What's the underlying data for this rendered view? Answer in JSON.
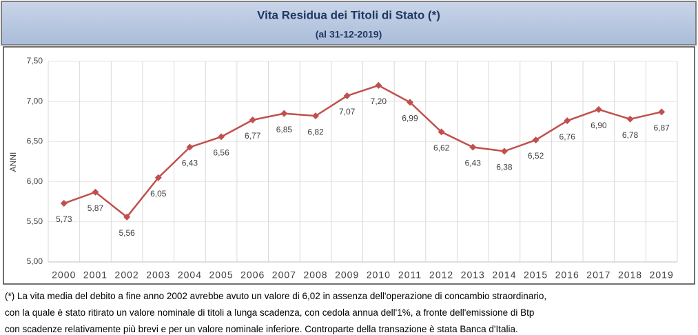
{
  "chart_data": {
    "type": "line",
    "title": "Vita Residua dei Titoli di Stato (*)",
    "subtitle": "(al  31-12-2019)",
    "ylabel": "ANNI",
    "categories": [
      "2000",
      "2001",
      "2002",
      "2003",
      "2004",
      "2005",
      "2006",
      "2007",
      "2008",
      "2009",
      "2010",
      "2011",
      "2012",
      "2013",
      "2014",
      "2015",
      "2016",
      "2017",
      "2018",
      "2019"
    ],
    "values": [
      5.73,
      5.87,
      5.56,
      6.05,
      6.43,
      6.56,
      6.77,
      6.85,
      6.82,
      7.07,
      7.2,
      6.99,
      6.62,
      6.43,
      6.38,
      6.52,
      6.76,
      6.9,
      6.78,
      6.87
    ],
    "value_labels": [
      "5,73",
      "5,87",
      "5,56",
      "6,05",
      "6,43",
      "6,56",
      "6,77",
      "6,85",
      "6,82",
      "7,07",
      "7,20",
      "6,99",
      "6,62",
      "6,43",
      "6,38",
      "6,52",
      "6,76",
      "6,90",
      "6,78",
      "6,87"
    ],
    "color": "#c0504d",
    "ylim": [
      5.0,
      7.5
    ],
    "yticks": [
      {
        "value": 5.0,
        "label": "5,00"
      },
      {
        "value": 5.5,
        "label": "5,50"
      },
      {
        "value": 6.0,
        "label": "6,00"
      },
      {
        "value": 6.5,
        "label": "6,50"
      },
      {
        "value": 7.0,
        "label": "7,00"
      },
      {
        "value": 7.5,
        "label": "7,50"
      }
    ],
    "grid": true,
    "footnote": [
      "(*) La vita media del debito a fine anno 2002 avrebbe avuto un valore di 6,02 in assenza dell'operazione di concambio straordinario,",
      " con la quale è stato ritirato un valore nominale di titoli a lunga scadenza, con cedola annua dell'1%, a fronte dell'emissione di Btp",
      "con scadenze relativamente più brevi e per un valore nominale inferiore. Controparte della transazione è stata Banca d'Italia."
    ]
  }
}
